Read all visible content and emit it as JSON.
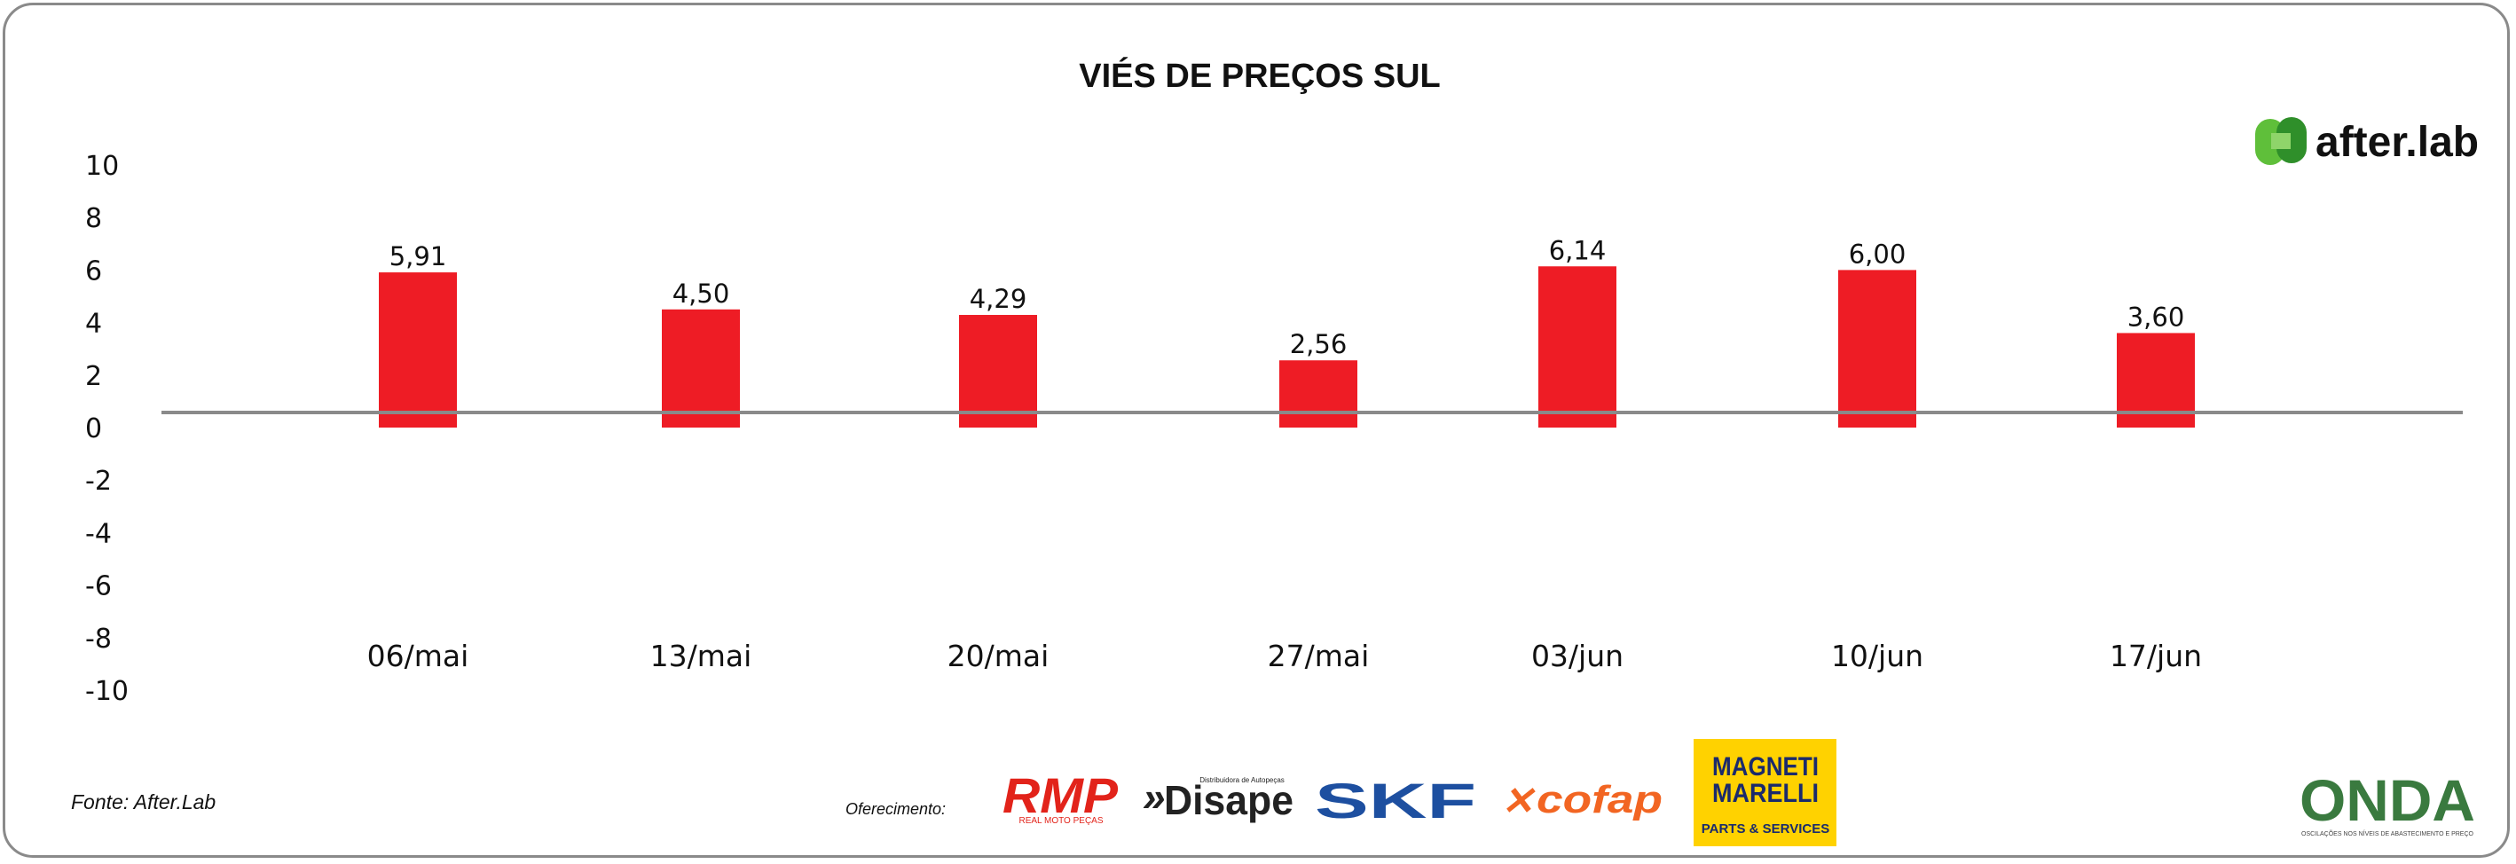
{
  "chart_data": {
    "type": "bar",
    "title": "VIÉS DE PREÇOS SUL",
    "categories": [
      "06/mai",
      "13/mai",
      "20/mai",
      "27/mai",
      "03/jun",
      "10/jun",
      "17/jun"
    ],
    "values": [
      5.91,
      4.5,
      4.29,
      2.56,
      6.14,
      6.0,
      3.6
    ],
    "value_labels": [
      "5,91",
      "4,50",
      "4,29",
      "2,56",
      "6,14",
      "6,00",
      "3,60"
    ],
    "yticks": [
      "10",
      "8",
      "6",
      "4",
      "2",
      "0",
      "-2",
      "-4",
      "-6",
      "-8",
      "-10"
    ],
    "ylim": [
      -10,
      10
    ],
    "bar_color": "#ee1c25",
    "grid": false,
    "legend": "none"
  },
  "footer": {
    "source": "Fonte: After.Lab",
    "sponsor_label": "Oferecimento:"
  },
  "logos": {
    "afterlab": {
      "icon": "afterlab-logo-icon",
      "text": "after.lab",
      "color": "#5fbf3a"
    },
    "rmp": {
      "text": "RMP",
      "subtext": "REAL MOTO PEÇAS",
      "color": "#e2231a"
    },
    "disape": {
      "text": "Disape",
      "subtext": "Distribuidora de Autopeças",
      "color": "#222222"
    },
    "skf": {
      "text": "SKF",
      "color": "#1d4fa0"
    },
    "cofap": {
      "text": "cofap",
      "color": "#f26522"
    },
    "magneti_marelli": {
      "line1": "MAGNETI",
      "line2": "MARELLI",
      "subtext": "PARTS & SERVICES",
      "bg": "#ffd200",
      "color": "#1a2a6c"
    },
    "onda": {
      "text": "ONDA",
      "subtext": "OSCILAÇÕES NOS NÍVEIS DE ABASTECIMENTO E PREÇO",
      "color": "#3a7a3f"
    }
  }
}
